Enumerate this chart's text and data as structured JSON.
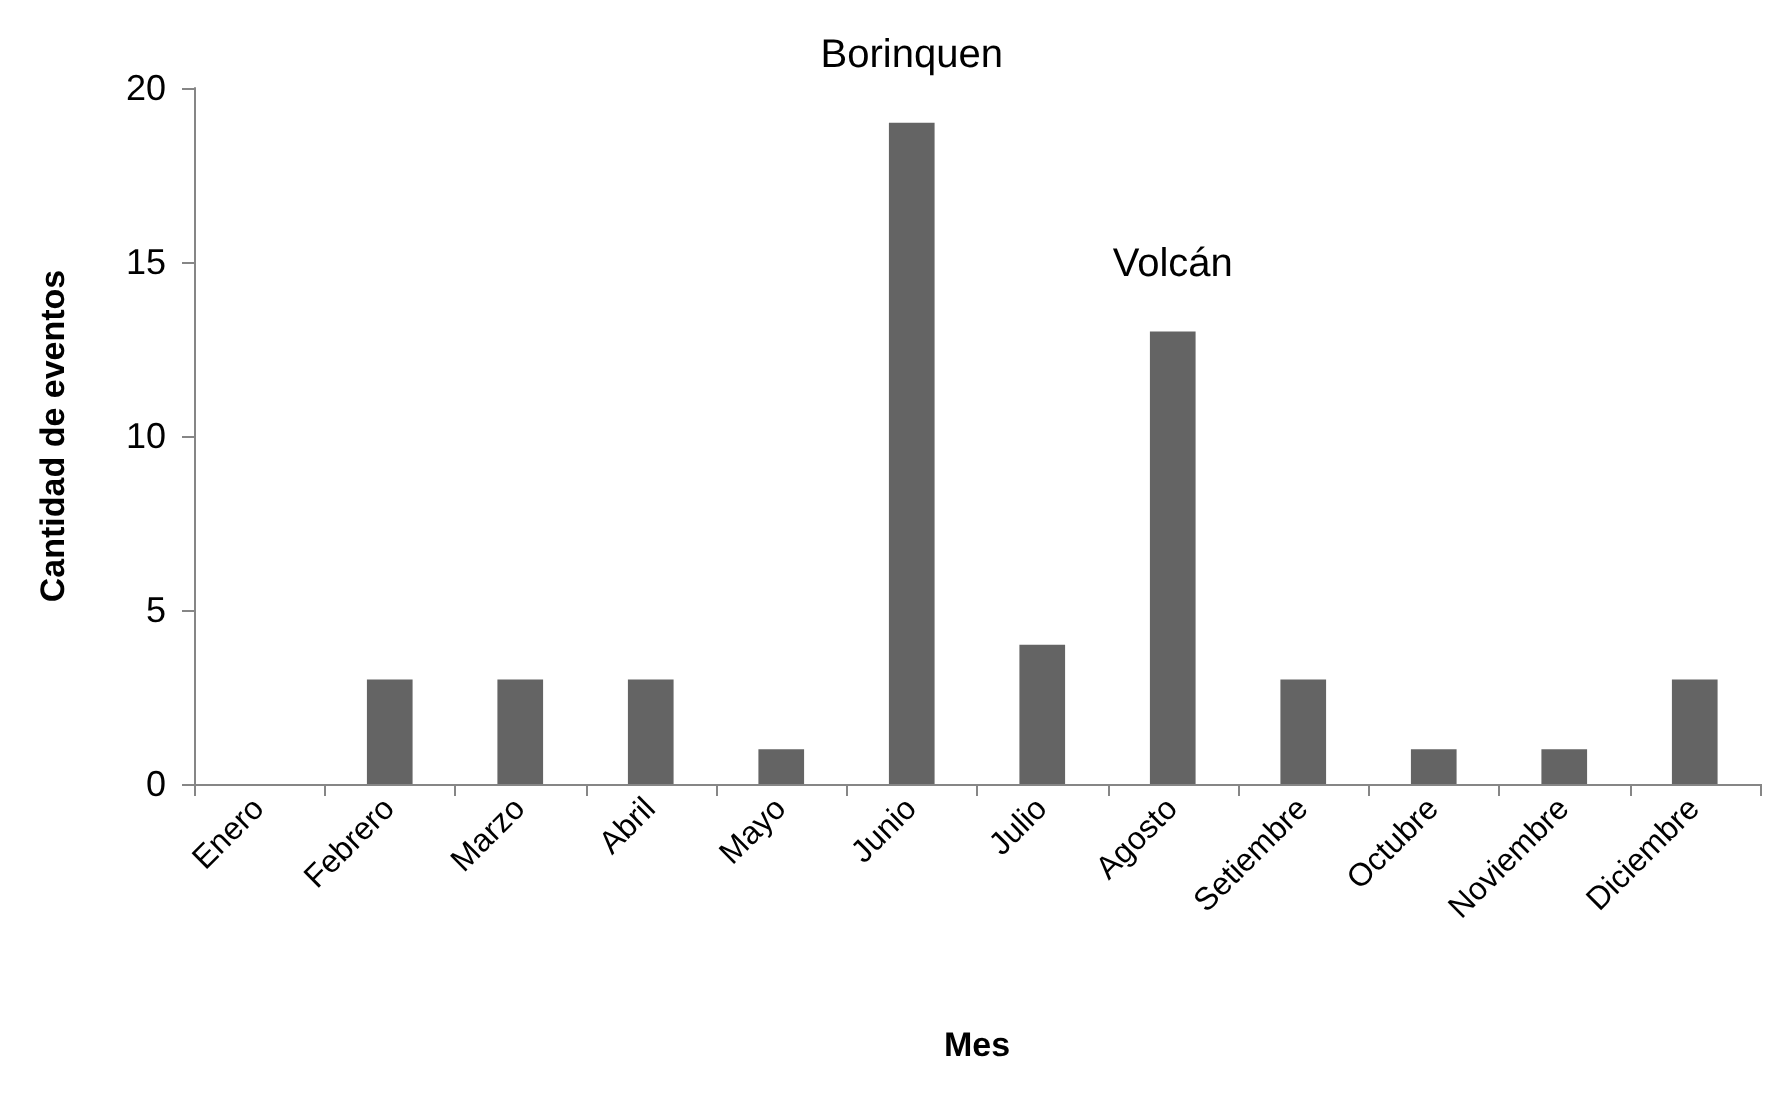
{
  "chart_data": {
    "type": "bar",
    "xlabel": "Mes",
    "ylabel": "Cantidad de eventos",
    "categories": [
      "Enero",
      "Febrero",
      "Marzo",
      "Abril",
      "Mayo",
      "Junio",
      "Julio",
      "Agosto",
      "Setiembre",
      "Octubre",
      "Noviembre",
      "Diciembre"
    ],
    "values": [
      0,
      3,
      3,
      3,
      1,
      19,
      4,
      13,
      3,
      1,
      1,
      3
    ],
    "color": "#646464",
    "ylim": [
      0,
      20
    ],
    "yticks": [
      0,
      5,
      10,
      15,
      20
    ],
    "grid": false,
    "annotations": [
      "Borinquen",
      "Volcán"
    ]
  }
}
